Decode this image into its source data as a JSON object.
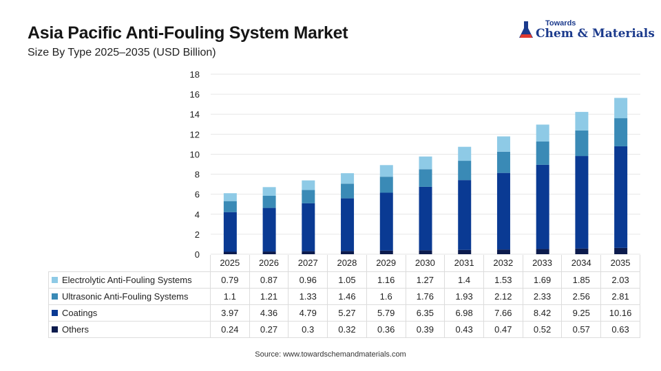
{
  "header": {
    "title": "Asia Pacific Anti-Fouling System Market",
    "subtitle": "Size By Type 2025–2035 (USD Billion)"
  },
  "logo": {
    "small_text": "Towards",
    "big_text": "Chem & Materials"
  },
  "source": "Source: www.towardschemandmaterials.com",
  "chart_data": {
    "type": "bar",
    "stacked": true,
    "categories": [
      "2025",
      "2026",
      "2027",
      "2028",
      "2029",
      "2030",
      "2031",
      "2032",
      "2033",
      "2034",
      "2035"
    ],
    "series": [
      {
        "name": "Others",
        "color": "#0c1b4d",
        "values": [
          0.24,
          0.27,
          0.3,
          0.32,
          0.36,
          0.39,
          0.43,
          0.47,
          0.52,
          0.57,
          0.63
        ]
      },
      {
        "name": "Coatings",
        "color": "#0a3a93",
        "values": [
          3.97,
          4.36,
          4.79,
          5.27,
          5.79,
          6.35,
          6.98,
          7.66,
          8.42,
          9.25,
          10.16
        ]
      },
      {
        "name": "Ultrasonic Anti-Fouling Systems",
        "color": "#3a8ab6",
        "values": [
          1.1,
          1.21,
          1.33,
          1.46,
          1.6,
          1.76,
          1.93,
          2.12,
          2.33,
          2.56,
          2.81
        ]
      },
      {
        "name": "Electrolytic Anti-Fouling Systems",
        "color": "#8ecae6",
        "values": [
          0.79,
          0.87,
          0.96,
          1.05,
          1.16,
          1.27,
          1.4,
          1.53,
          1.69,
          1.85,
          2.03
        ]
      }
    ],
    "table_order": [
      "Electrolytic Anti-Fouling Systems",
      "Ultrasonic Anti-Fouling Systems",
      "Coatings",
      "Others"
    ],
    "ylim": [
      0,
      18
    ],
    "yticks": [
      0,
      2,
      4,
      6,
      8,
      10,
      12,
      14,
      16,
      18
    ],
    "grid": true,
    "legend": "data-table-below"
  }
}
